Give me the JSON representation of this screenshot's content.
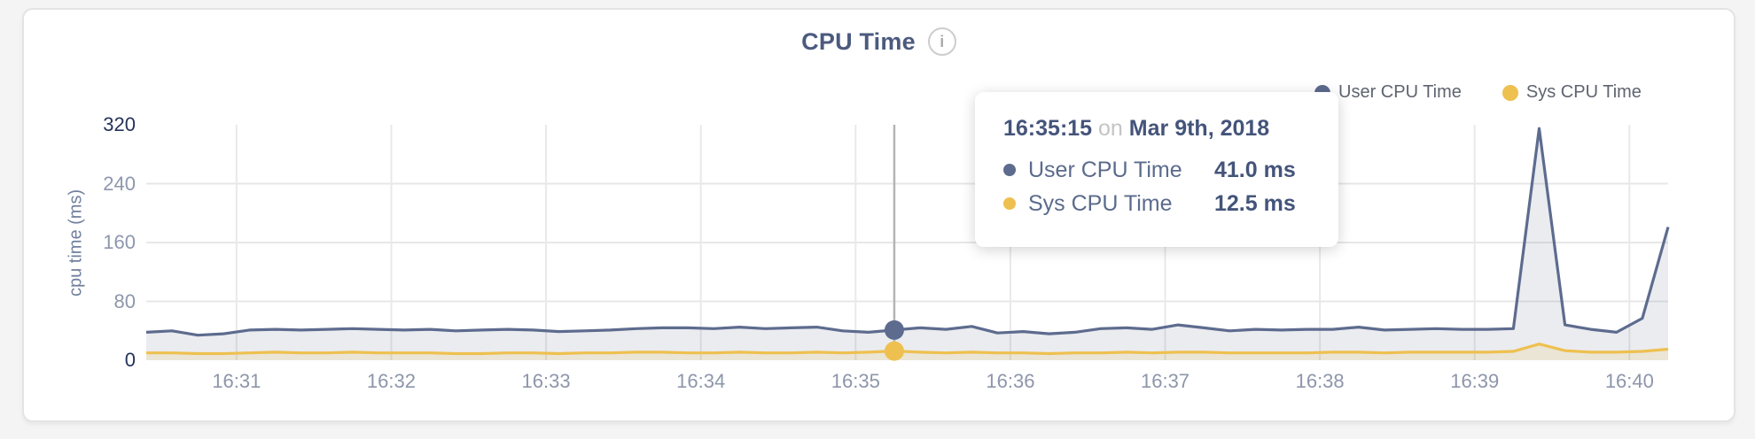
{
  "card": {
    "title": "CPU Time",
    "info_icon": "i"
  },
  "legend": {
    "items": [
      {
        "label": "User CPU Time",
        "color": "#5d6b8e"
      },
      {
        "label": "Sys CPU Time",
        "color": "#eec04f"
      }
    ]
  },
  "tooltip": {
    "time": "16:35:15",
    "connector": "on",
    "date": "Mar 9th, 2018",
    "rows": [
      {
        "label": "User CPU Time",
        "value": "41.0 ms",
        "color": "#5d6b8e"
      },
      {
        "label": "Sys CPU Time",
        "value": "12.5 ms",
        "color": "#eec04f"
      }
    ]
  },
  "chart_data": {
    "type": "area",
    "title": "CPU Time",
    "ylabel": "cpu time (ms)",
    "ylim": [
      0,
      320
    ],
    "y_ticks": [
      0,
      80,
      160,
      240,
      320
    ],
    "x_ticks": [
      "16:31",
      "16:32",
      "16:33",
      "16:34",
      "16:35",
      "16:36",
      "16:37",
      "16:38",
      "16:39",
      "16:40"
    ],
    "grid": true,
    "legend_position": "top-right",
    "hover_index": 29,
    "hover_time": "16:35:15",
    "hover_date": "Mar 9th, 2018",
    "x": [
      "16:30:25",
      "16:30:35",
      "16:30:45",
      "16:30:55",
      "16:31:05",
      "16:31:15",
      "16:31:25",
      "16:31:35",
      "16:31:45",
      "16:31:55",
      "16:32:05",
      "16:32:15",
      "16:32:25",
      "16:32:35",
      "16:32:45",
      "16:32:55",
      "16:33:05",
      "16:33:15",
      "16:33:25",
      "16:33:35",
      "16:33:45",
      "16:33:55",
      "16:34:05",
      "16:34:15",
      "16:34:25",
      "16:34:35",
      "16:34:45",
      "16:34:55",
      "16:35:05",
      "16:35:15",
      "16:35:25",
      "16:35:35",
      "16:35:45",
      "16:35:55",
      "16:36:05",
      "16:36:15",
      "16:36:25",
      "16:36:35",
      "16:36:45",
      "16:36:55",
      "16:37:05",
      "16:37:15",
      "16:37:25",
      "16:37:35",
      "16:37:45",
      "16:37:55",
      "16:38:05",
      "16:38:15",
      "16:38:25",
      "16:38:35",
      "16:38:45",
      "16:38:55",
      "16:39:05",
      "16:39:15",
      "16:39:25",
      "16:39:35",
      "16:39:45",
      "16:39:55",
      "16:40:05",
      "16:40:15"
    ],
    "series": [
      {
        "name": "User CPU Time",
        "unit": "ms",
        "color": "#5d6b8e",
        "fill": "rgba(99,112,141,0.13)",
        "values": [
          38,
          40,
          34,
          36,
          41,
          42,
          41,
          42,
          43,
          42,
          41,
          42,
          40,
          41,
          42,
          41,
          39,
          40,
          41,
          43,
          44,
          44,
          43,
          45,
          43,
          44,
          45,
          40,
          38,
          41,
          44,
          42,
          46,
          37,
          39,
          36,
          38,
          43,
          44,
          42,
          48,
          44,
          40,
          42,
          41,
          42,
          42,
          45,
          41,
          42,
          43,
          42,
          42,
          43,
          315,
          48,
          42,
          38,
          57,
          181
        ]
      },
      {
        "name": "Sys CPU Time",
        "unit": "ms",
        "color": "#eec04f",
        "fill": "rgba(238,192,80,0.16)",
        "values": [
          10,
          10,
          9,
          9,
          10,
          11,
          10,
          10,
          11,
          10,
          10,
          10,
          9,
          9,
          10,
          10,
          9,
          10,
          10,
          11,
          11,
          10,
          10,
          11,
          10,
          10,
          11,
          10,
          11,
          12.5,
          11,
          10,
          11,
          10,
          10,
          9,
          10,
          10,
          11,
          10,
          11,
          11,
          10,
          10,
          10,
          10,
          11,
          11,
          10,
          11,
          11,
          11,
          11,
          12,
          22,
          13,
          11,
          11,
          12,
          15
        ]
      }
    ]
  }
}
